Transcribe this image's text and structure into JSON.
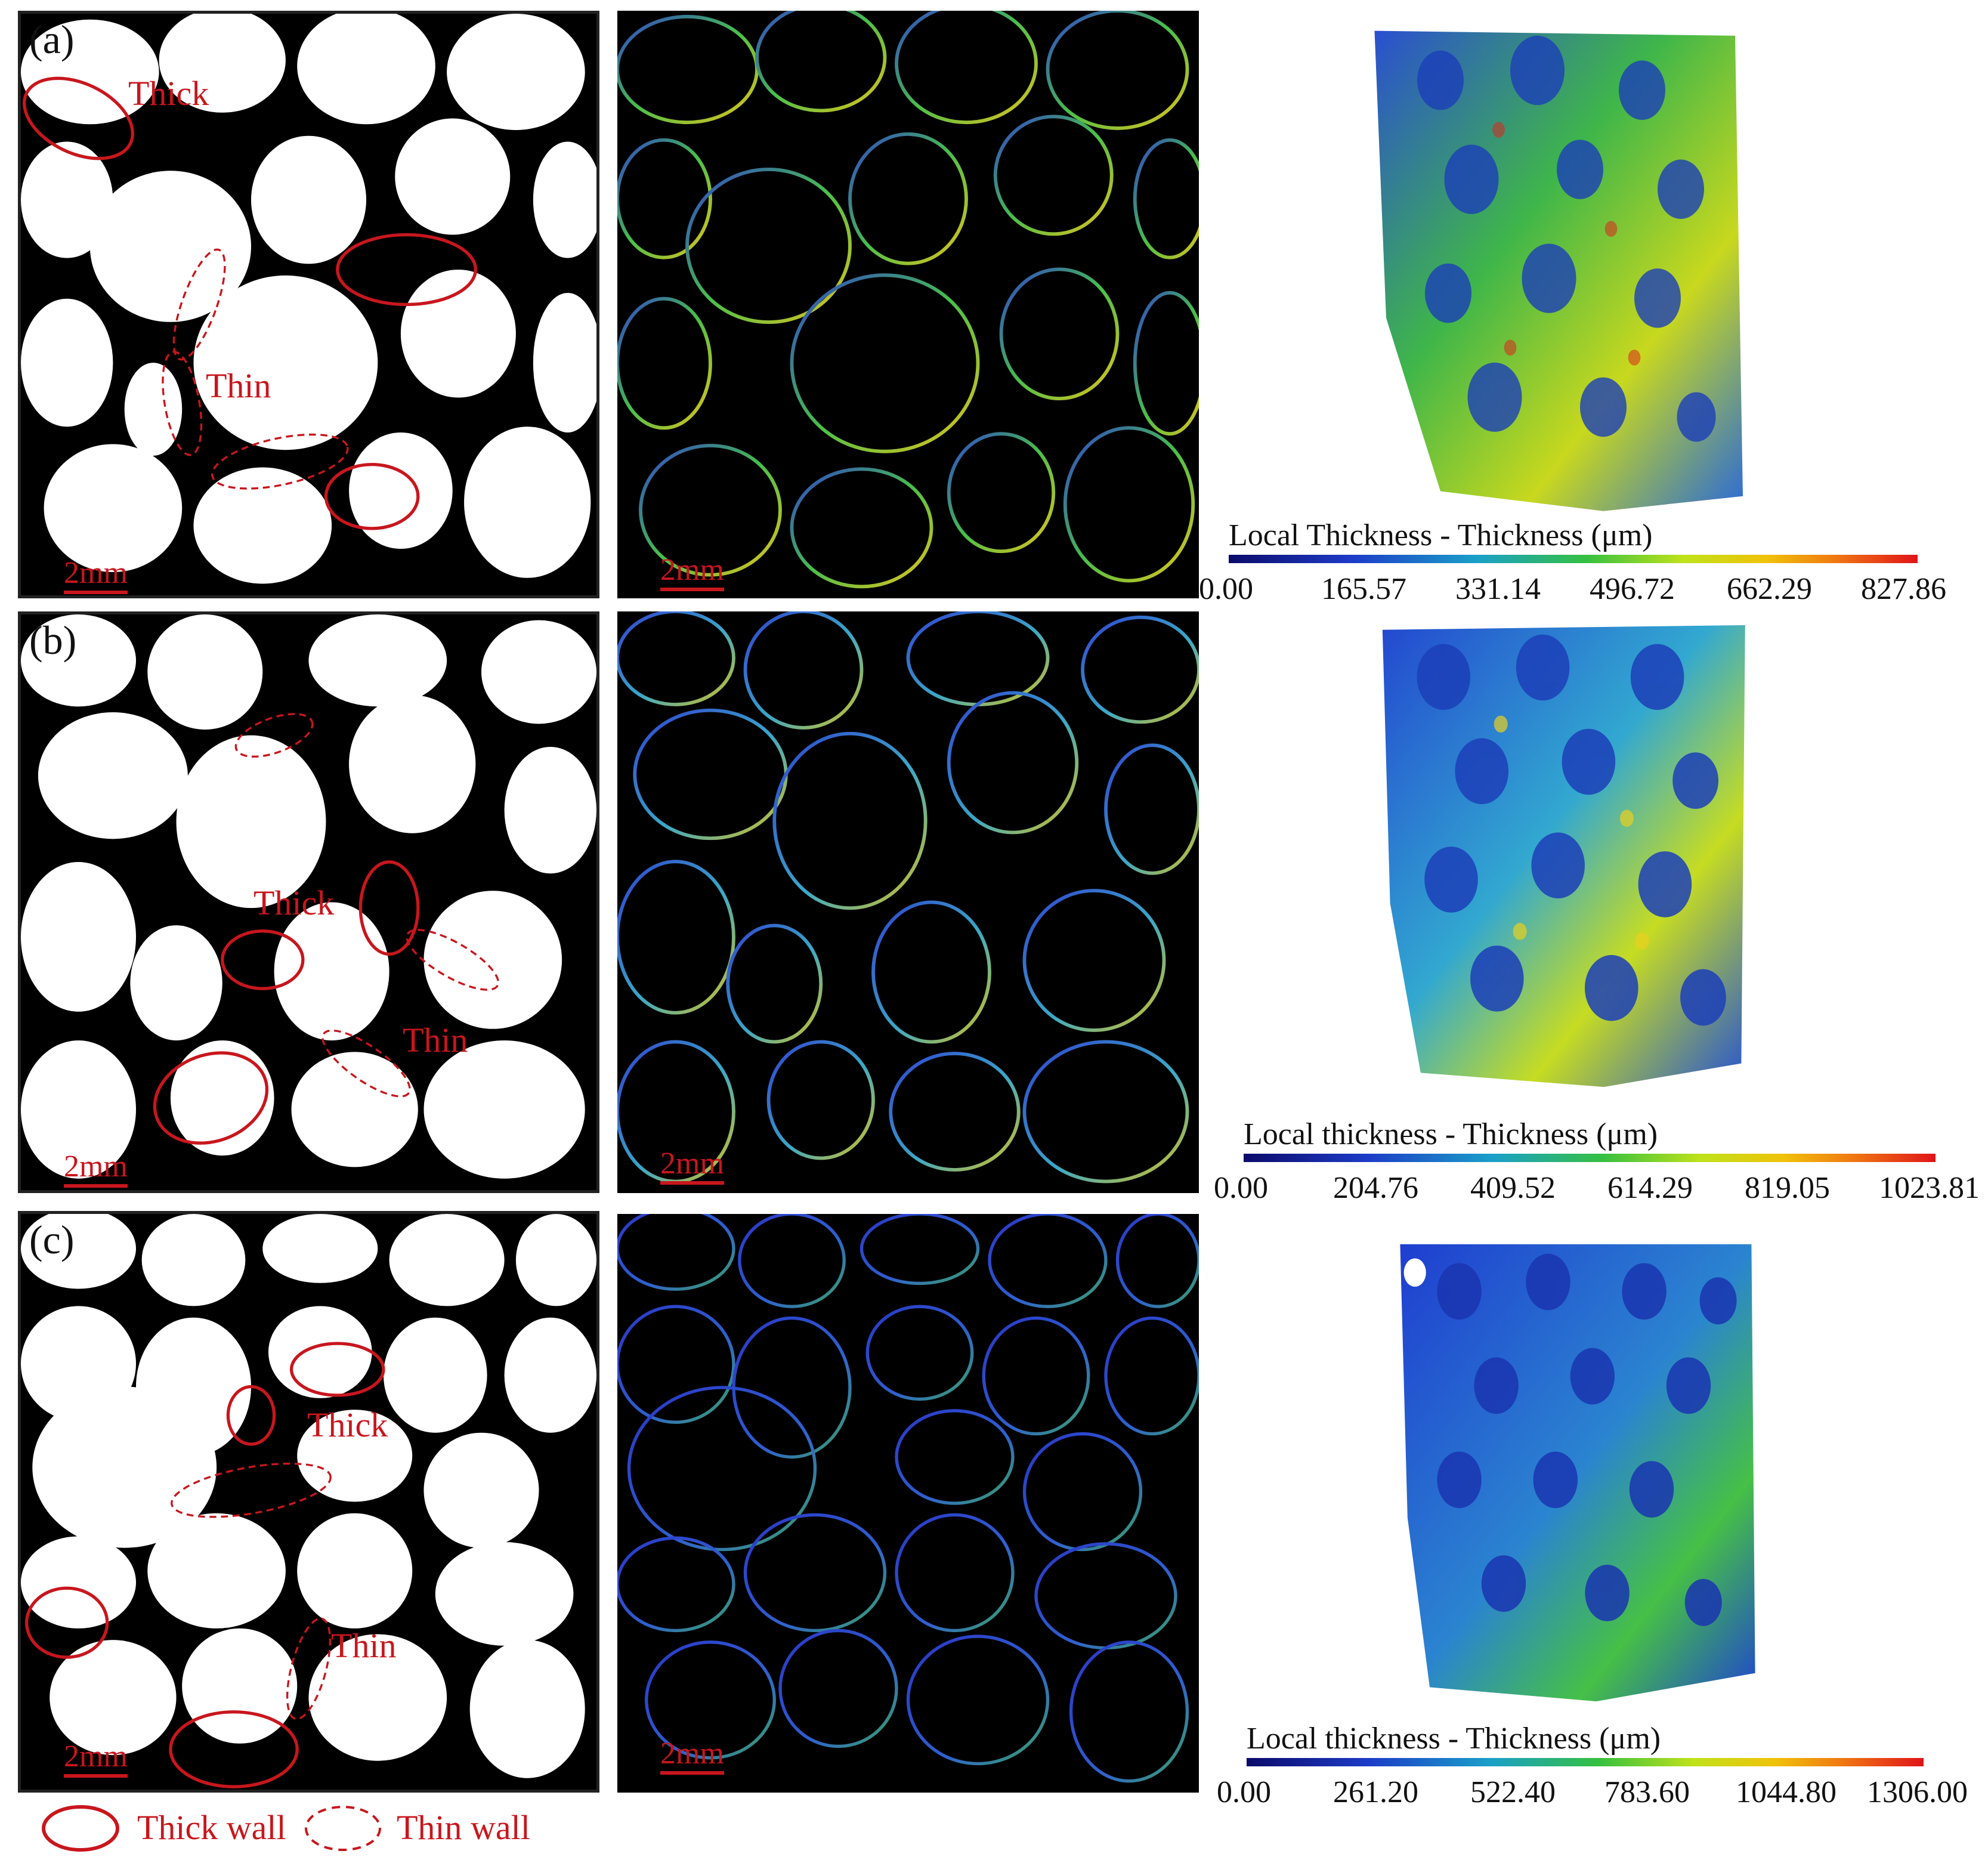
{
  "rows": [
    {
      "label": "(a)",
      "annotations": {
        "thick": "Thick",
        "thin": "Thin"
      },
      "scale_bar_left": "2mm",
      "scale_bar_mid": "2mm",
      "colorbar": {
        "title": "Local Thickness - Thickness (μm)",
        "ticks": [
          "0.00",
          "165.57",
          "331.14",
          "496.72",
          "662.29",
          "827.86"
        ]
      }
    },
    {
      "label": "(b)",
      "annotations": {
        "thick": "Thick",
        "thin": "Thin"
      },
      "scale_bar_left": "2mm",
      "scale_bar_mid": "2mm",
      "colorbar": {
        "title": "Local thickness - Thickness (μm)",
        "ticks": [
          "0.00",
          "204.76",
          "409.52",
          "614.29",
          "819.05",
          "1023.81"
        ]
      }
    },
    {
      "label": "(c)",
      "annotations": {
        "thick": "Thick",
        "thin": "Thin"
      },
      "scale_bar_left": "2mm",
      "scale_bar_mid": "2mm",
      "colorbar": {
        "title": "Local thickness - Thickness (μm)",
        "ticks": [
          "0.00",
          "261.20",
          "522.40",
          "783.60",
          "1044.80",
          "1306.00"
        ]
      }
    }
  ],
  "legend": {
    "thick_wall": "Thick wall",
    "thin_wall": "Thin wall"
  },
  "colors": {
    "annotation": "#c8161d",
    "foam_wall": "#000000",
    "pore": "#ffffff"
  }
}
